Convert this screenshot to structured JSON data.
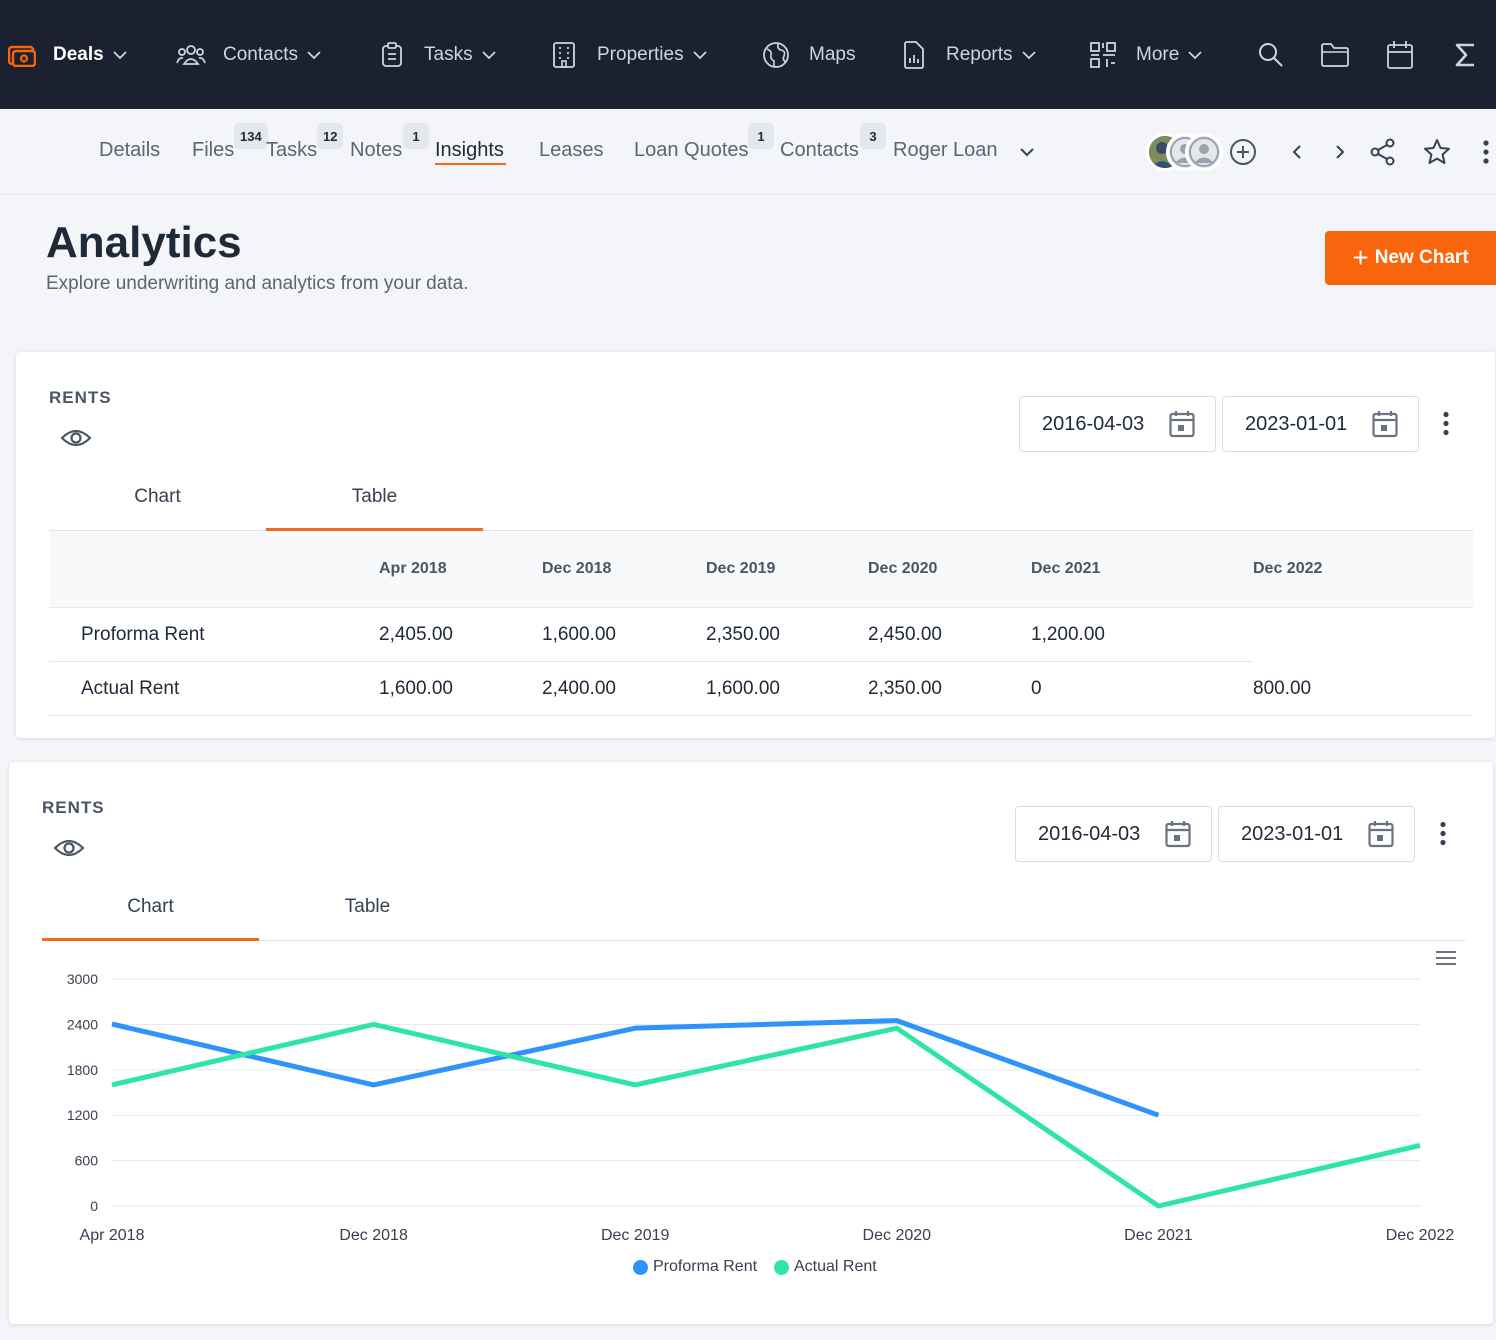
{
  "topnav": {
    "items": [
      {
        "label": "Deals",
        "icon": "deals-icon"
      },
      {
        "label": "Contacts",
        "icon": "contacts-icon"
      },
      {
        "label": "Tasks",
        "icon": "clipboard-icon"
      },
      {
        "label": "Properties",
        "icon": "building-icon"
      },
      {
        "label": "Maps",
        "icon": "globe-icon"
      },
      {
        "label": "Reports",
        "icon": "report-icon"
      },
      {
        "label": "More",
        "icon": "qr-icon"
      }
    ],
    "accent": "#f8650c"
  },
  "subnav": {
    "tabs": [
      {
        "label": "Details"
      },
      {
        "label": "Files",
        "badge": "134"
      },
      {
        "label": "Tasks",
        "badge": "12"
      },
      {
        "label": "Notes",
        "badge": "1"
      },
      {
        "label": "Insights"
      },
      {
        "label": "Leases"
      },
      {
        "label": "Loan Quotes",
        "badge": "1"
      },
      {
        "label": "Contacts",
        "badge": "3"
      },
      {
        "label": "Roger Loan"
      }
    ],
    "active_tab": "Insights"
  },
  "header": {
    "title": "Analytics",
    "subtitle": "Explore underwriting and analytics from your data.",
    "new_chart_label": "New Chart",
    "new_chart_plus": "+"
  },
  "card_table": {
    "title": "RENTS",
    "start_date": "2016-04-03",
    "end_date": "2023-01-01",
    "tabs": [
      "Chart",
      "Table"
    ],
    "active_tab": "Table",
    "columns": [
      "Apr 2018",
      "Dec 2018",
      "Dec 2019",
      "Dec 2020",
      "Dec 2021",
      "Dec 2022"
    ],
    "rows": [
      {
        "label": "Proforma Rent",
        "cells": [
          "2,405.00",
          "1,600.00",
          "2,350.00",
          "2,450.00",
          "1,200.00",
          ""
        ]
      },
      {
        "label": "Actual Rent",
        "cells": [
          "1,600.00",
          "2,400.00",
          "1,600.00",
          "2,350.00",
          "0",
          "800.00"
        ]
      }
    ]
  },
  "card_chart": {
    "title": "RENTS",
    "start_date": "2016-04-03",
    "end_date": "2023-01-01",
    "tabs": [
      "Chart",
      "Table"
    ],
    "active_tab": "Chart"
  },
  "chart_data": {
    "type": "line",
    "x": [
      "Apr 2018",
      "Dec 2018",
      "Dec 2019",
      "Dec 2020",
      "Dec 2021",
      "Dec 2022"
    ],
    "y_ticks": [
      0,
      600,
      1200,
      1800,
      2400,
      3000
    ],
    "ylim": [
      0,
      3000
    ],
    "grid": true,
    "legend_position": "bottom",
    "series": [
      {
        "name": "Proforma Rent",
        "color": "#2e93fa",
        "values": [
          2405,
          1600,
          2350,
          2450,
          1200,
          null
        ]
      },
      {
        "name": "Actual Rent",
        "color": "#2ee6a1",
        "values": [
          1600,
          2400,
          1600,
          2350,
          0,
          800
        ]
      }
    ]
  }
}
